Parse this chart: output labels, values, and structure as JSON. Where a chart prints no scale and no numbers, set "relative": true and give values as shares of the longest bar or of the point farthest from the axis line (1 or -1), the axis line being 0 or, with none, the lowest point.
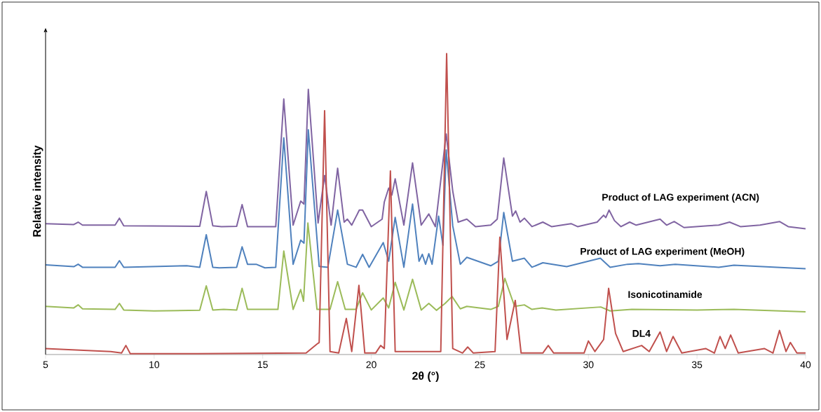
{
  "chart_data": {
    "type": "line",
    "xlabel": "2θ (°)",
    "ylabel": "Relative intensity",
    "relative": true,
    "xlim": [
      5,
      40
    ],
    "xticks": [
      5,
      10,
      15,
      20,
      25,
      30,
      35,
      40
    ],
    "series": [
      {
        "name": "Product of LAG experiment (ACN)",
        "color": "#8064a2",
        "x": [
          5,
          6.3,
          6.5,
          6.7,
          8.2,
          8.4,
          8.6,
          12.1,
          12.4,
          12.7,
          13.1,
          13.8,
          14.05,
          14.3,
          15.6,
          15.97,
          16.4,
          16.75,
          16.9,
          17.1,
          17.55,
          17.85,
          18.15,
          18.45,
          18.75,
          18.9,
          19.1,
          19.45,
          19.6,
          20.0,
          20.5,
          20.6,
          20.8,
          20.95,
          21.1,
          21.5,
          21.9,
          22.3,
          22.65,
          22.95,
          23.45,
          23.75,
          24.0,
          24.4,
          24.8,
          25.5,
          25.8,
          26.1,
          26.5,
          26.65,
          26.85,
          27.05,
          27.4,
          27.9,
          28.3,
          29.2,
          29.5,
          30.4,
          30.7,
          30.8,
          30.95,
          31.2,
          31.5,
          31.9,
          32.2,
          33.3,
          33.6,
          33.95,
          34.4,
          35.5,
          36.0,
          36.5,
          37.0,
          37.9,
          38.8,
          39.2,
          40
        ],
        "values": [
          0.435,
          0.432,
          0.44,
          0.43,
          0.43,
          0.453,
          0.428,
          0.426,
          0.542,
          0.428,
          0.425,
          0.426,
          0.498,
          0.425,
          0.425,
          0.849,
          0.43,
          0.51,
          0.5,
          0.881,
          0.437,
          0.595,
          0.43,
          0.619,
          0.44,
          0.45,
          0.43,
          0.48,
          0.48,
          0.425,
          0.45,
          0.507,
          0.553,
          0.53,
          0.584,
          0.43,
          0.637,
          0.43,
          0.467,
          0.425,
          0.733,
          0.544,
          0.44,
          0.45,
          0.425,
          0.43,
          0.45,
          0.653,
          0.46,
          0.477,
          0.44,
          0.453,
          0.425,
          0.44,
          0.425,
          0.435,
          0.425,
          0.44,
          0.463,
          0.455,
          0.48,
          0.445,
          0.425,
          0.44,
          0.43,
          0.45,
          0.43,
          0.442,
          0.422,
          0.428,
          0.43,
          0.44,
          0.425,
          0.43,
          0.442,
          0.425,
          0.418
        ]
      },
      {
        "name": "Product of LAG experiment (MeOH)",
        "color": "#4f81bd",
        "x": [
          5,
          6.3,
          6.5,
          6.7,
          8.2,
          8.4,
          8.6,
          11.5,
          12.1,
          12.4,
          12.7,
          13.0,
          13.8,
          14.05,
          14.3,
          14.7,
          15.1,
          15.6,
          15.97,
          16.4,
          16.75,
          16.9,
          17.1,
          17.6,
          18.0,
          18.45,
          18.9,
          19.3,
          19.6,
          19.9,
          20.55,
          20.8,
          21.1,
          21.5,
          21.9,
          22.2,
          22.35,
          22.5,
          22.65,
          22.8,
          23.1,
          23.3,
          23.45,
          23.75,
          24.1,
          24.4,
          25.5,
          25.85,
          26.1,
          26.5,
          27.05,
          27.4,
          27.9,
          29.0,
          30.55,
          31.0,
          31.8,
          32.3,
          33.3,
          34.0,
          36.0,
          36.7,
          40
        ],
        "values": [
          0.298,
          0.292,
          0.3,
          0.29,
          0.29,
          0.312,
          0.29,
          0.295,
          0.29,
          0.398,
          0.29,
          0.288,
          0.29,
          0.358,
          0.3,
          0.3,
          0.288,
          0.29,
          0.72,
          0.3,
          0.38,
          0.37,
          0.747,
          0.293,
          0.29,
          0.48,
          0.3,
          0.29,
          0.333,
          0.29,
          0.372,
          0.31,
          0.456,
          0.29,
          0.5,
          0.31,
          0.333,
          0.3,
          0.335,
          0.3,
          0.46,
          0.363,
          0.68,
          0.428,
          0.3,
          0.323,
          0.295,
          0.31,
          0.472,
          0.31,
          0.32,
          0.29,
          0.305,
          0.292,
          0.32,
          0.29,
          0.3,
          0.302,
          0.295,
          0.3,
          0.29,
          0.297,
          0.285
        ]
      },
      {
        "name": "Isonicotinamide",
        "color": "#9bbb59",
        "x": [
          5,
          6.3,
          6.5,
          6.7,
          8.2,
          8.4,
          8.6,
          10.0,
          12.1,
          12.4,
          12.7,
          13.2,
          13.8,
          14.05,
          14.3,
          15.7,
          15.97,
          16.4,
          16.75,
          16.88,
          17.08,
          17.5,
          18.1,
          18.45,
          18.8,
          19.3,
          19.6,
          20.0,
          20.55,
          20.8,
          21.1,
          21.5,
          21.9,
          22.3,
          22.65,
          23.0,
          23.4,
          23.72,
          24.1,
          24.4,
          25.5,
          25.85,
          26.15,
          26.6,
          27.05,
          27.4,
          27.87,
          28.5,
          30.57,
          31.0,
          32.0,
          35.0,
          36.7,
          40
        ],
        "values": [
          0.16,
          0.155,
          0.165,
          0.152,
          0.15,
          0.17,
          0.148,
          0.145,
          0.147,
          0.228,
          0.148,
          0.15,
          0.148,
          0.22,
          0.15,
          0.15,
          0.344,
          0.15,
          0.216,
          0.177,
          0.437,
          0.15,
          0.15,
          0.242,
          0.15,
          0.15,
          0.205,
          0.148,
          0.188,
          0.155,
          0.24,
          0.148,
          0.25,
          0.148,
          0.17,
          0.147,
          0.17,
          0.193,
          0.152,
          0.16,
          0.15,
          0.16,
          0.253,
          0.16,
          0.165,
          0.15,
          0.155,
          0.148,
          0.158,
          0.145,
          0.15,
          0.148,
          0.15,
          0.142
        ]
      },
      {
        "name": "DL4",
        "color": "#c0504d",
        "x": [
          5,
          8.0,
          8.5,
          8.7,
          8.9,
          12.0,
          17.0,
          17.5,
          17.6,
          17.85,
          18.1,
          18.5,
          18.85,
          19.1,
          19.43,
          19.7,
          20.2,
          20.43,
          20.6,
          20.88,
          21.1,
          23.2,
          23.47,
          23.75,
          24.2,
          24.44,
          24.7,
          25.7,
          25.92,
          26.25,
          26.63,
          26.9,
          27.9,
          28.15,
          28.4,
          29.8,
          30.0,
          30.3,
          30.7,
          30.93,
          31.25,
          31.6,
          32.45,
          32.8,
          33.3,
          33.6,
          33.9,
          34.3,
          35.4,
          35.8,
          36.06,
          36.3,
          36.55,
          36.9,
          38.1,
          38.5,
          38.8,
          39.1,
          39.3,
          39.6,
          40
        ],
        "values": [
          0.02,
          0.01,
          0.005,
          0.03,
          0.003,
          0.003,
          0.005,
          0.035,
          0.04,
          0.81,
          0.01,
          0.005,
          0.12,
          0.01,
          0.23,
          0.005,
          0.005,
          0.03,
          0.02,
          0.61,
          0.01,
          0.01,
          1,
          0.02,
          0.005,
          0.025,
          0.005,
          0.01,
          0.39,
          0.05,
          0.18,
          0.005,
          0.005,
          0.03,
          0.005,
          0.005,
          0.045,
          0.01,
          0.05,
          0.22,
          0.07,
          0.01,
          0.03,
          0.01,
          0.075,
          0.01,
          0.06,
          0.005,
          0.02,
          0.005,
          0.06,
          0.02,
          0.065,
          0.005,
          0.02,
          0.005,
          0.08,
          0.01,
          0.04,
          0.005,
          0.005
        ]
      }
    ]
  }
}
